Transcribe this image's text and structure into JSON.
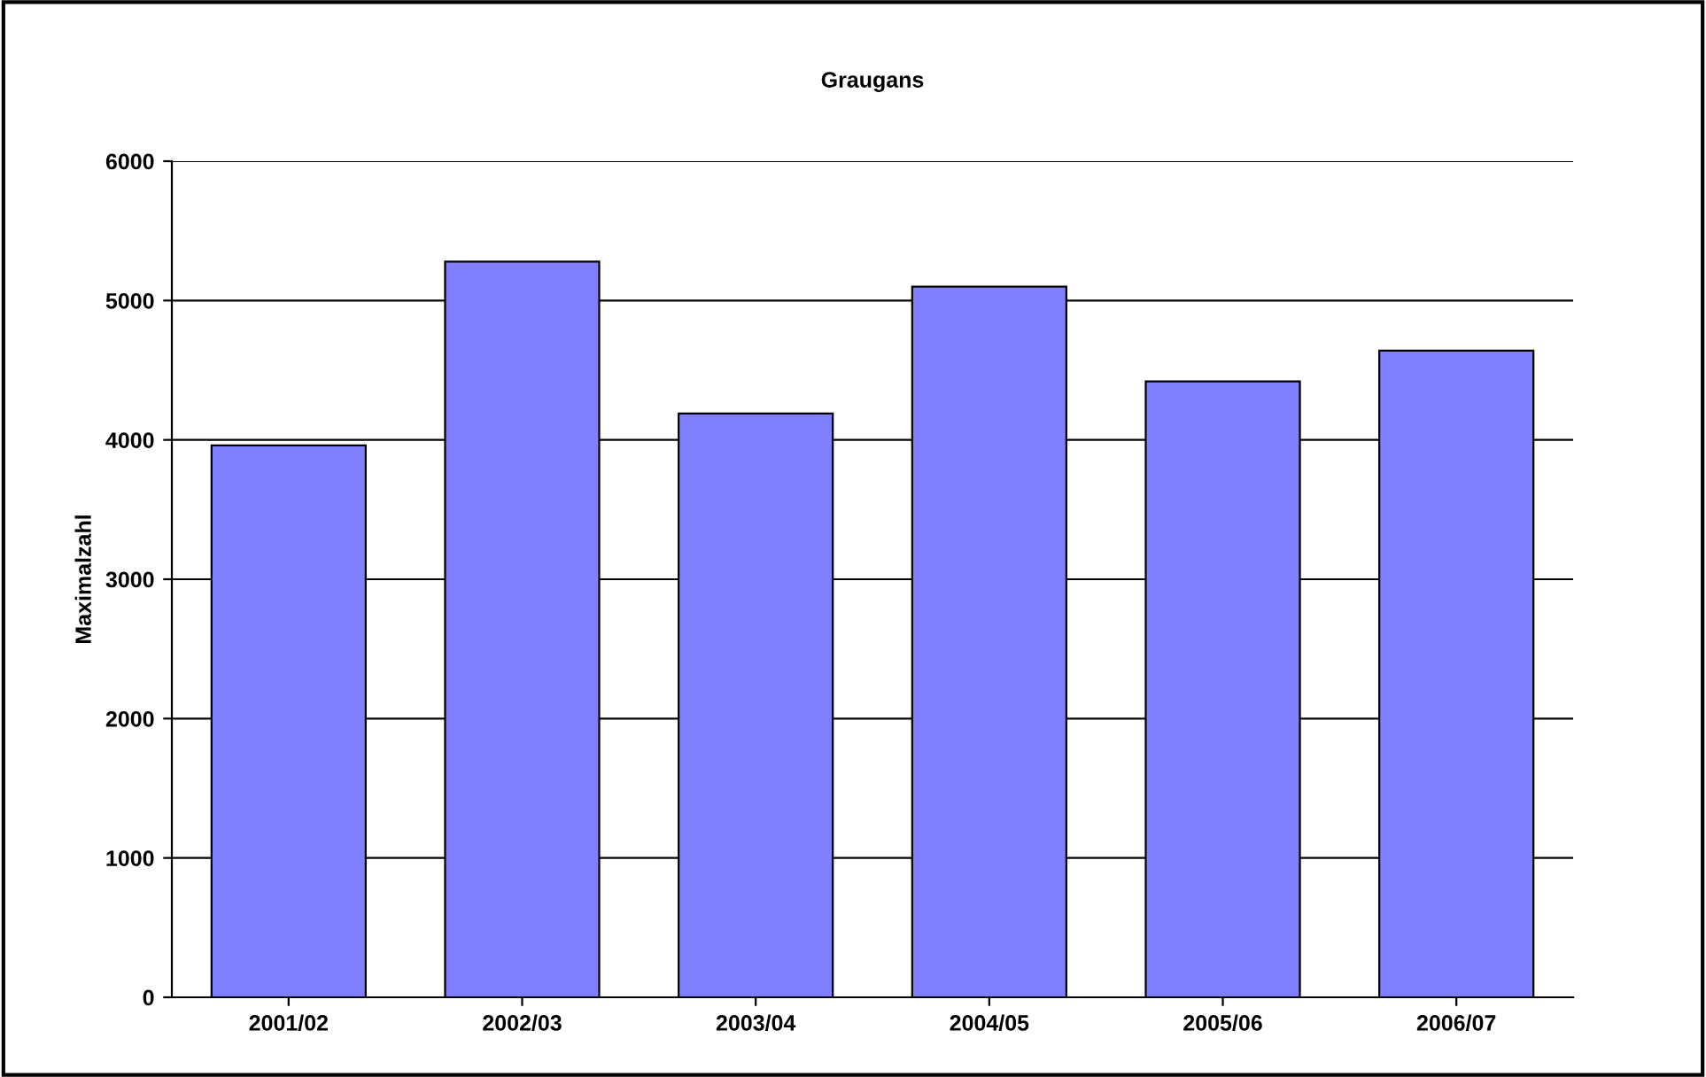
{
  "chart_data": {
    "type": "bar",
    "title": "Graugans",
    "ylabel": "Maximalzahl",
    "categories": [
      "2001/02",
      "2002/03",
      "2003/04",
      "2004/05",
      "2005/06",
      "2006/07"
    ],
    "values": [
      3960,
      5280,
      4190,
      5100,
      4420,
      4640
    ],
    "color": "#8080ff",
    "ylim": [
      0,
      6000
    ],
    "yticks": [
      0,
      1000,
      2000,
      3000,
      4000,
      5000,
      6000
    ],
    "grid": "y",
    "legend": false
  }
}
